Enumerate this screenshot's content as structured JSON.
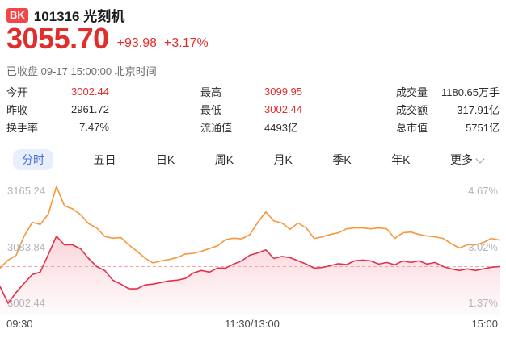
{
  "header": {
    "badge": "BK",
    "title": "101316 光刻机",
    "price": "3055.70",
    "change_amount": "+93.98",
    "change_percent": "+3.17%",
    "status": "已收盘 09-17 15:00:00 北京时间"
  },
  "stats": {
    "col1": [
      {
        "label": "今开",
        "value": "3002.44",
        "highlight": true
      },
      {
        "label": "昨收",
        "value": "2961.72",
        "highlight": false
      },
      {
        "label": "换手率",
        "value": "7.47%",
        "highlight": false
      }
    ],
    "col2": [
      {
        "label": "最高",
        "value": "3099.95",
        "highlight": true
      },
      {
        "label": "最低",
        "value": "3002.44",
        "highlight": true
      },
      {
        "label": "流通值",
        "value": "4493亿",
        "highlight": false
      }
    ],
    "col3": [
      {
        "label": "成交量",
        "value": "1180.65万手",
        "highlight": false
      },
      {
        "label": "成交额",
        "value": "317.91亿",
        "highlight": false
      },
      {
        "label": "总市值",
        "value": "5751亿",
        "highlight": false
      }
    ]
  },
  "tabs": {
    "items": [
      {
        "id": "minute",
        "label": "分时",
        "active": true,
        "has_chevron": false
      },
      {
        "id": "five-day",
        "label": "五日",
        "active": false,
        "has_chevron": false
      },
      {
        "id": "day-k",
        "label": "日K",
        "active": false,
        "has_chevron": false
      },
      {
        "id": "week-k",
        "label": "周K",
        "active": false,
        "has_chevron": false
      },
      {
        "id": "month-k",
        "label": "月K",
        "active": false,
        "has_chevron": false
      },
      {
        "id": "quarter-k",
        "label": "季K",
        "active": false,
        "has_chevron": false
      },
      {
        "id": "year-k",
        "label": "年K",
        "active": false,
        "has_chevron": false
      },
      {
        "id": "more",
        "label": "更多",
        "active": false,
        "has_chevron": true
      }
    ]
  },
  "colors": {
    "red": "#e22d2d",
    "badge_red": "#f04848",
    "line_red": "#e5304c",
    "line_orange": "#f7963b",
    "baseline_pink": "#f2a3a3",
    "fill_pink": "#e5304c",
    "tab_active_text": "#4a6fdf",
    "tab_active_bg": "#e8eefc",
    "axis_gray": "#b3b3ba"
  },
  "chart_data": {
    "type": "line",
    "grid": false,
    "x_axis": {
      "labels": [
        "09:30",
        "11:30/13:00",
        "15:00"
      ]
    },
    "y_axis_left": {
      "min": 3002.44,
      "max": 3165.24,
      "labels": [
        "3165.24",
        "3083.84",
        "3002.44"
      ]
    },
    "y_axis_right": {
      "labels": [
        "4.67%",
        "3.02%",
        "1.37%"
      ]
    },
    "baseline": {
      "value": 3055.7,
      "style": "dashed"
    },
    "series": [
      {
        "name": "sector-index-price",
        "color": "#e5304c",
        "fill": true,
        "values": [
          3026.9,
          3002.4,
          3018.0,
          3031.5,
          3044.3,
          3047.8,
          3073.4,
          3099.9,
          3087.3,
          3087.3,
          3081.5,
          3067.5,
          3055.9,
          3050.0,
          3036.1,
          3030.3,
          3023.4,
          3023.4,
          3029.1,
          3030.3,
          3032.7,
          3035.0,
          3036.1,
          3038.5,
          3046.6,
          3050.1,
          3047.8,
          3053.6,
          3053.6,
          3059.4,
          3064.1,
          3072.2,
          3075.7,
          3080.0,
          3067.5,
          3070.5,
          3068.7,
          3064.1,
          3059.4,
          3053.5,
          3054.5,
          3057.0,
          3060.0,
          3058.5,
          3064.1,
          3065.2,
          3064.1,
          3059.4,
          3061.7,
          3058.3,
          3064.1,
          3061.7,
          3064.1,
          3059.4,
          3061.7,
          3055.9,
          3052.4,
          3050.1,
          3052.4,
          3050.1,
          3052.4,
          3054.8,
          3055.7
        ]
      },
      {
        "name": "overlay-line",
        "color": "#f7963b",
        "fill": false,
        "values": [
          3053.6,
          3065.2,
          3072.0,
          3100.1,
          3119.9,
          3117.0,
          3132.0,
          3172.0,
          3144.0,
          3139.6,
          3131.0,
          3118.0,
          3112.0,
          3099.5,
          3097.0,
          3098.0,
          3087.0,
          3078.0,
          3068.0,
          3061.0,
          3064.0,
          3066.0,
          3069.0,
          3074.0,
          3075.0,
          3078.0,
          3082.0,
          3086.0,
          3095.0,
          3097.0,
          3096.0,
          3102.0,
          3120.0,
          3135.0,
          3122.0,
          3119.0,
          3110.0,
          3119.0,
          3112.0,
          3096.6,
          3098.9,
          3102.4,
          3104.8,
          3110.6,
          3111.8,
          3111.8,
          3110.6,
          3111.8,
          3110.6,
          3096.6,
          3104.8,
          3105.9,
          3102.4,
          3100.1,
          3098.9,
          3096.6,
          3089.0,
          3082.7,
          3087.3,
          3087.3,
          3090.8,
          3096.6,
          3094.3
        ]
      }
    ]
  }
}
